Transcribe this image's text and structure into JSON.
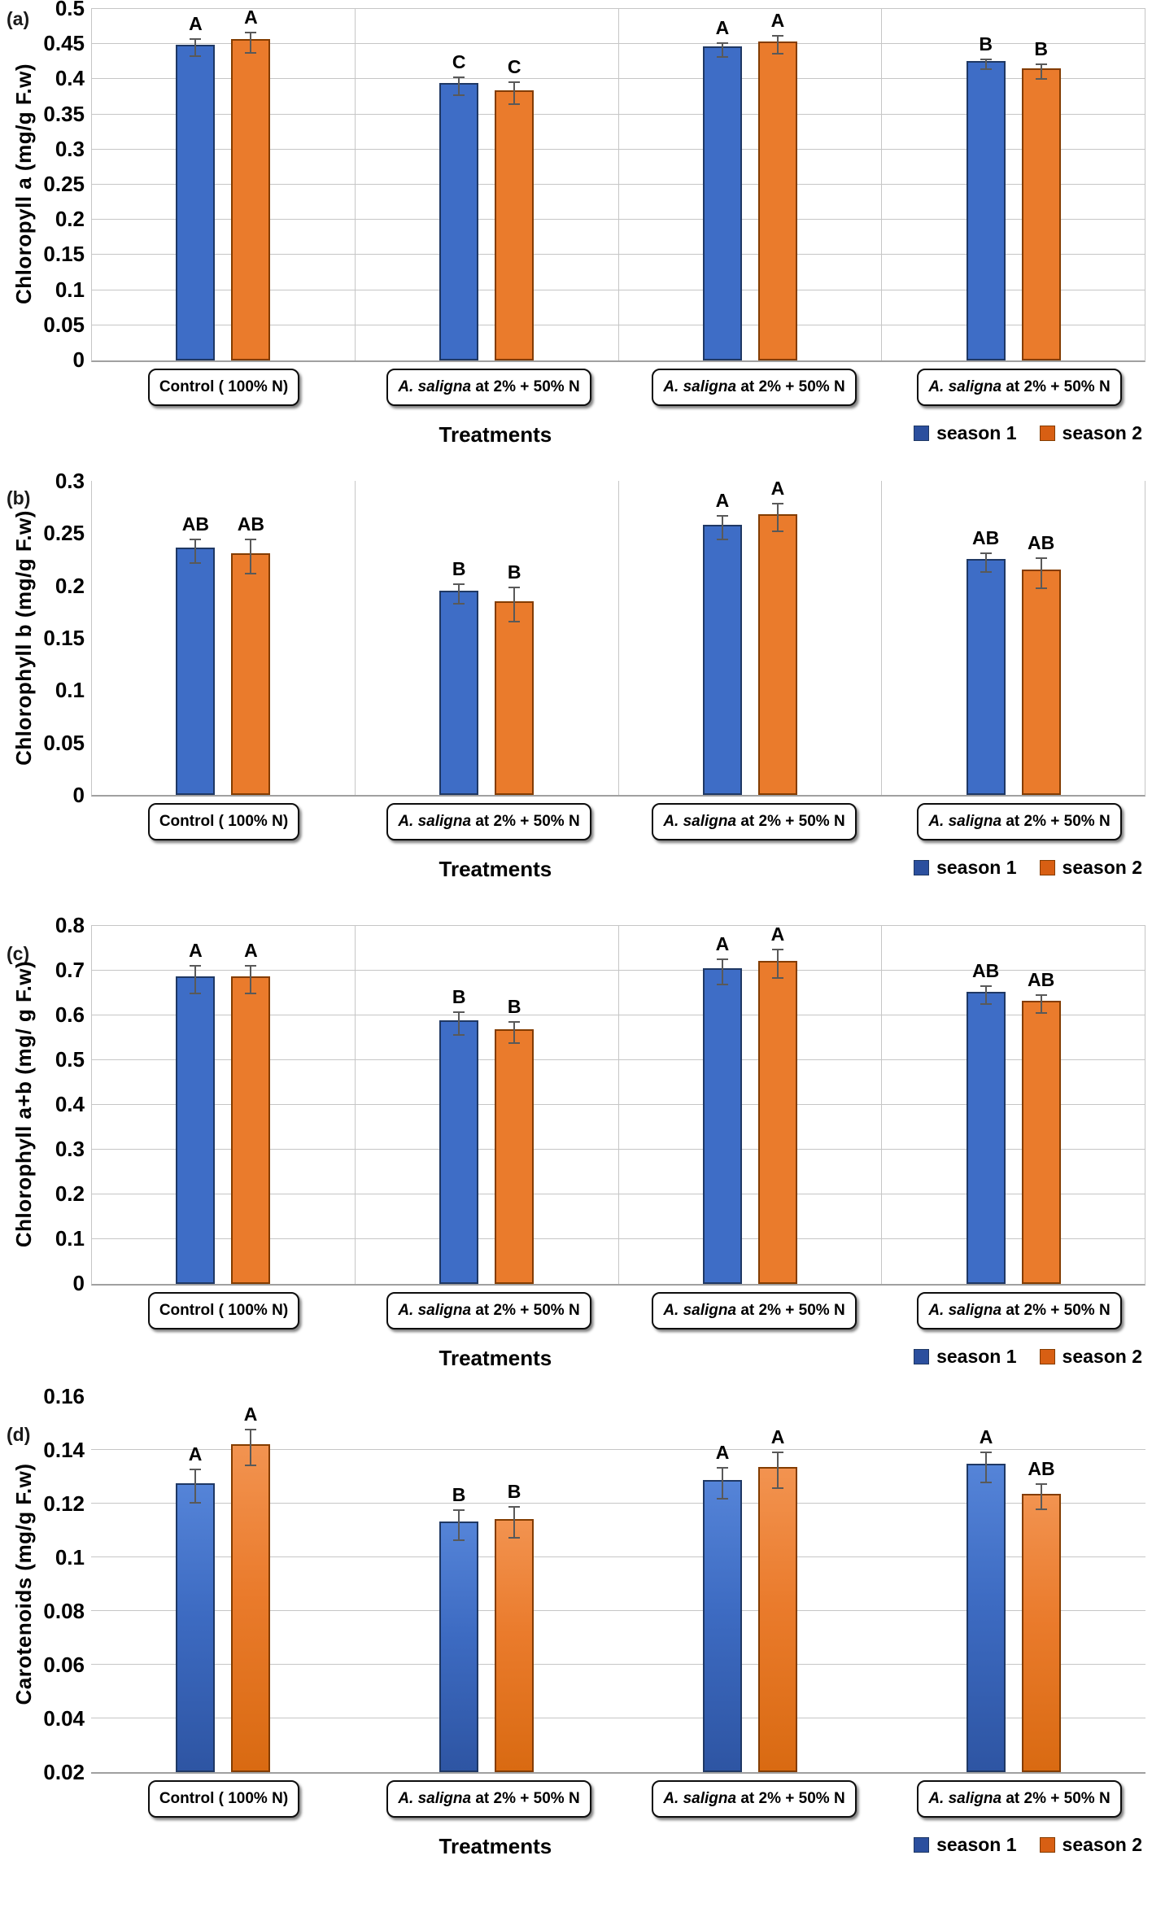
{
  "colors": {
    "season1_fill": "#3e6dc6",
    "season1_border": "#1f3864",
    "season1_legend": "#2b4f9e",
    "season2_fill": "#ea7b2c",
    "season2_border": "#833c00",
    "season2_legend": "#d85f13",
    "gridline": "#c6c6c6",
    "axis_line": "#a0a0a0",
    "error_bar": "#595959"
  },
  "legend_labels": [
    "season 1",
    "season 2"
  ],
  "x_axis_title": "Treatments",
  "chart_data": [
    {
      "id": "a",
      "type": "bar",
      "panel_label": "(a)",
      "ylabel": "Chloropyll a (mg/g F.w)",
      "xlabel": "Treatments",
      "ylim": [
        0,
        0.5
      ],
      "yticks": [
        {
          "v": 0.5,
          "label": "0.5"
        },
        {
          "v": 0.45,
          "label": "0.45"
        },
        {
          "v": 0.4,
          "label": "0.4"
        },
        {
          "v": 0.35,
          "label": "0.35"
        },
        {
          "v": 0.3,
          "label": "0.3"
        },
        {
          "v": 0.25,
          "label": "0.25"
        },
        {
          "v": 0.2,
          "label": "0.2"
        },
        {
          "v": 0.15,
          "label": "0.15"
        },
        {
          "v": 0.1,
          "label": "0.1"
        },
        {
          "v": 0.05,
          "label": "0.05"
        },
        {
          "v": 0,
          "label": "0"
        }
      ],
      "categories": [
        [
          {
            "t": "Control ( 100% N)",
            "i": false
          }
        ],
        [
          {
            "t": "A. saligna",
            "i": true
          },
          {
            "t": " at 2% + 50% N",
            "i": false
          }
        ],
        [
          {
            "t": "A. saligna",
            "i": true
          },
          {
            "t": " at 2% + 50% N",
            "i": false
          }
        ],
        [
          {
            "t": "A. saligna",
            "i": true
          },
          {
            "t": " at 2% + 50% N",
            "i": false
          }
        ]
      ],
      "series": [
        {
          "name": "season 1",
          "values": [
            0.445,
            0.39,
            0.442,
            0.421
          ],
          "errors": [
            0.013,
            0.014,
            0.011,
            0.008
          ],
          "letters": [
            "A",
            "C",
            "A",
            "B"
          ]
        },
        {
          "name": "season 2",
          "values": [
            0.452,
            0.38,
            0.449,
            0.411
          ],
          "errors": [
            0.016,
            0.017,
            0.014,
            0.012
          ],
          "letters": [
            "A",
            "C",
            "A",
            "B"
          ]
        }
      ],
      "grid_horizontal": true,
      "group_dividers": true,
      "frame_top": true,
      "gradient_bars": false,
      "legend_position": "bottom-right"
    },
    {
      "id": "b",
      "type": "bar",
      "panel_label": "(b)",
      "ylabel": "Chlorophyll b (mg/g F.w)",
      "xlabel": "Treatments",
      "ylim": [
        0,
        0.3
      ],
      "yticks": [
        {
          "v": 0.3,
          "label": "0.3"
        },
        {
          "v": 0.25,
          "label": "0.25"
        },
        {
          "v": 0.2,
          "label": "0.2"
        },
        {
          "v": 0.15,
          "label": "0.15"
        },
        {
          "v": 0.1,
          "label": "0.1"
        },
        {
          "v": 0.05,
          "label": "0.05"
        },
        {
          "v": 0,
          "label": "0"
        }
      ],
      "categories": [
        [
          {
            "t": "Control ( 100% N)",
            "i": false
          }
        ],
        [
          {
            "t": "A. saligna",
            "i": true
          },
          {
            "t": " at 2% + 50% N",
            "i": false
          }
        ],
        [
          {
            "t": "A. saligna",
            "i": true
          },
          {
            "t": " at 2% + 50% N",
            "i": false
          }
        ],
        [
          {
            "t": "A. saligna",
            "i": true
          },
          {
            "t": " at 2% + 50% N",
            "i": false
          }
        ]
      ],
      "series": [
        {
          "name": "season 1",
          "values": [
            0.233,
            0.192,
            0.255,
            0.222
          ],
          "errors": [
            0.012,
            0.01,
            0.012,
            0.01
          ],
          "letters": [
            "AB",
            "B",
            "A",
            "AB"
          ]
        },
        {
          "name": "season 2",
          "values": [
            0.228,
            0.182,
            0.265,
            0.212
          ],
          "errors": [
            0.017,
            0.017,
            0.014,
            0.015
          ],
          "letters": [
            "AB",
            "B",
            "A",
            "AB"
          ]
        }
      ],
      "grid_horizontal": false,
      "group_dividers": true,
      "frame_top": false,
      "gradient_bars": false,
      "legend_position": "bottom-right"
    },
    {
      "id": "c",
      "type": "bar",
      "panel_label": "(c)",
      "ylabel": "Chlorophyll a+b (mg/ g F.w)",
      "xlabel": "Treatments",
      "ylim": [
        0,
        0.8
      ],
      "yticks": [
        {
          "v": 0.8,
          "label": "0.8"
        },
        {
          "v": 0.7,
          "label": "0.7"
        },
        {
          "v": 0.6,
          "label": "0.6"
        },
        {
          "v": 0.5,
          "label": "0.5"
        },
        {
          "v": 0.4,
          "label": "0.4"
        },
        {
          "v": 0.3,
          "label": "0.3"
        },
        {
          "v": 0.2,
          "label": "0.2"
        },
        {
          "v": 0.1,
          "label": "0.1"
        },
        {
          "v": 0,
          "label": "0"
        }
      ],
      "categories": [
        [
          {
            "t": "Control ( 100% N)",
            "i": false
          }
        ],
        [
          {
            "t": "A. saligna",
            "i": true
          },
          {
            "t": " at 2% + 50% N",
            "i": false
          }
        ],
        [
          {
            "t": "A. saligna",
            "i": true
          },
          {
            "t": " at 2% + 50% N",
            "i": false
          }
        ],
        [
          {
            "t": "A. saligna",
            "i": true
          },
          {
            "t": " at 2% + 50% N",
            "i": false
          }
        ]
      ],
      "series": [
        {
          "name": "season 1",
          "values": [
            0.68,
            0.582,
            0.698,
            0.645
          ],
          "errors": [
            0.033,
            0.028,
            0.03,
            0.022
          ],
          "letters": [
            "A",
            "B",
            "A",
            "AB"
          ]
        },
        {
          "name": "season 2",
          "values": [
            0.68,
            0.562,
            0.715,
            0.625
          ],
          "errors": [
            0.033,
            0.026,
            0.034,
            0.022
          ],
          "letters": [
            "A",
            "B",
            "A",
            "AB"
          ]
        }
      ],
      "grid_horizontal": true,
      "group_dividers": true,
      "frame_top": true,
      "gradient_bars": false,
      "legend_position": "bottom-right"
    },
    {
      "id": "d",
      "type": "bar",
      "panel_label": "(d)",
      "ylabel": "Carotenoids (mg/g F.w)",
      "xlabel": "Treatments",
      "ylim": [
        0.02,
        0.16
      ],
      "yticks": [
        {
          "v": 0.16,
          "label": "0.16"
        },
        {
          "v": 0.14,
          "label": "0.14"
        },
        {
          "v": 0.12,
          "label": "0.12"
        },
        {
          "v": 0.1,
          "label": "0.1"
        },
        {
          "v": 0.08,
          "label": "0.08"
        },
        {
          "v": 0.06,
          "label": "0.06"
        },
        {
          "v": 0.04,
          "label": "0.04"
        },
        {
          "v": 0.02,
          "label": "0.02"
        }
      ],
      "categories": [
        [
          {
            "t": "Control ( 100% N)",
            "i": false
          }
        ],
        [
          {
            "t": "A. saligna",
            "i": true
          },
          {
            "t": " at 2% + 50% N",
            "i": false
          }
        ],
        [
          {
            "t": "A. saligna",
            "i": true
          },
          {
            "t": " at 2% + 50% N",
            "i": false
          }
        ],
        [
          {
            "t": "A. saligna",
            "i": true
          },
          {
            "t": " at 2% + 50% N",
            "i": false
          }
        ]
      ],
      "series": [
        {
          "name": "season 1",
          "values": [
            0.1265,
            0.112,
            0.1275,
            0.1335
          ],
          "errors": [
            0.0065,
            0.006,
            0.006,
            0.006
          ],
          "letters": [
            "A",
            "B",
            "A",
            "A"
          ]
        },
        {
          "name": "season 2",
          "values": [
            0.141,
            0.113,
            0.1325,
            0.1225
          ],
          "errors": [
            0.007,
            0.006,
            0.007,
            0.005
          ],
          "letters": [
            "A",
            "B",
            "A",
            "AB"
          ]
        }
      ],
      "grid_horizontal": true,
      "group_dividers": false,
      "frame_top": false,
      "gradient_bars": true,
      "legend_position": "bottom-right"
    }
  ]
}
